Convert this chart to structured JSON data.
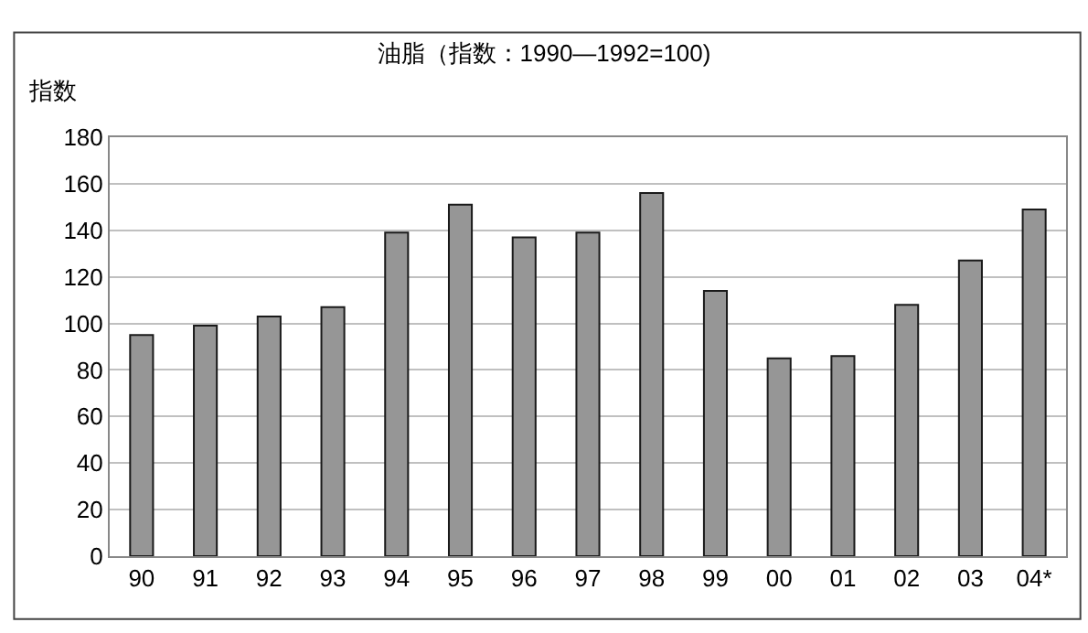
{
  "chart_data": {
    "type": "bar",
    "title": "油脂（指数：1990—1992=100)",
    "ylabel": "指数",
    "categories": [
      "90",
      "91",
      "92",
      "93",
      "94",
      "95",
      "96",
      "97",
      "98",
      "99",
      "00",
      "01",
      "02",
      "03",
      "04*"
    ],
    "values": [
      95,
      99,
      103,
      107,
      139,
      151,
      137,
      139,
      156,
      114,
      85,
      86,
      108,
      127,
      149
    ],
    "color": "#969696",
    "ylim": [
      0,
      180
    ],
    "yticks": [
      0,
      20,
      40,
      60,
      80,
      100,
      120,
      140,
      160,
      180
    ],
    "grid": "y"
  }
}
